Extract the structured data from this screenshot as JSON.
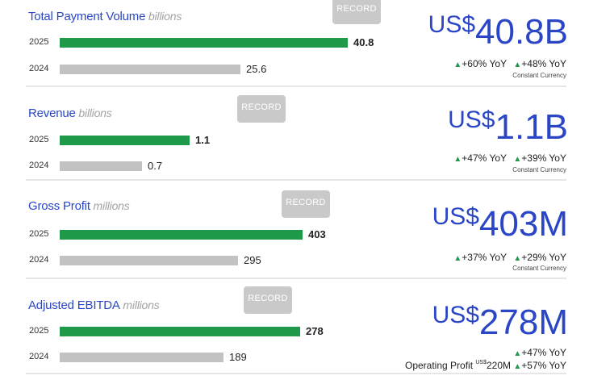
{
  "chart_data": [
    {
      "type": "bar",
      "title": "Total Payment Volume",
      "unit": "billions",
      "categories": [
        "2025",
        "2024"
      ],
      "values": [
        40.8,
        25.6
      ],
      "value_labels": [
        "40.8",
        "25.6"
      ],
      "record_label": "RECORD",
      "headline": {
        "currency": "US$",
        "value": "40.8B"
      },
      "yoy": [
        "+60% YoY",
        "+48% YoY"
      ],
      "note": "Constant Currency",
      "xlim": [
        0,
        56
      ]
    },
    {
      "type": "bar",
      "title": "Revenue",
      "unit": "billions",
      "categories": [
        "2025",
        "2024"
      ],
      "values": [
        1.1,
        0.7
      ],
      "value_labels": [
        "1.1",
        "0.7"
      ],
      "record_label": "RECORD",
      "headline": {
        "currency": "US$",
        "value": "1.1B"
      },
      "yoy": [
        "+47% YoY",
        "+39% YoY"
      ],
      "note": "Constant Currency",
      "xlim": [
        0,
        3.35
      ]
    },
    {
      "type": "bar",
      "title": "Gross Profit",
      "unit": "millions",
      "categories": [
        "2025",
        "2024"
      ],
      "values": [
        403,
        295
      ],
      "value_labels": [
        "403",
        "295"
      ],
      "record_label": "RECORD",
      "headline": {
        "currency": "US$",
        "value": "403M"
      },
      "yoy": [
        "+37% YoY",
        "+29% YoY"
      ],
      "note": "Constant Currency",
      "xlim": [
        0,
        655
      ]
    },
    {
      "type": "bar",
      "title": "Adjusted EBITDA",
      "unit": "millions",
      "categories": [
        "2025",
        "2024"
      ],
      "values": [
        278,
        189
      ],
      "value_labels": [
        "278",
        "189"
      ],
      "record_label": "RECORD",
      "headline": {
        "currency": "US$",
        "value": "278M"
      },
      "yoy": [
        "+47% YoY",
        "+57% YoY"
      ],
      "operating_profit": {
        "label": "Operating Profit",
        "currency": "US$",
        "value": "220M"
      },
      "xlim": [
        0,
        457
      ]
    }
  ]
}
